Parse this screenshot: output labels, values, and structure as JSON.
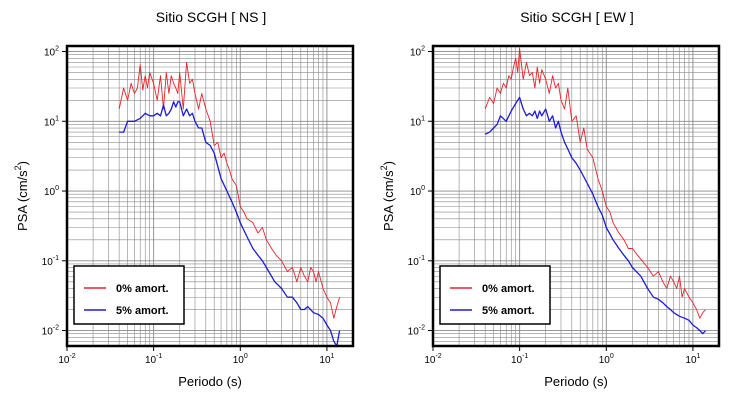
{
  "colors": {
    "undamped": "#e8232b",
    "damped": "#1c1cd6",
    "grid": "#8a8a8a",
    "frame": "#000000"
  },
  "chart_data": [
    {
      "type": "line",
      "title": "Sitio SCGH [ NS ]",
      "xlabel": "Periodo (s)",
      "ylabel": "PSA (cm/s²)",
      "x_scale": "log",
      "y_scale": "log",
      "xlim": [
        0.01,
        20
      ],
      "ylim": [
        0.006,
        120
      ],
      "x_ticks": [
        {
          "v": 0.01,
          "m": "10",
          "e": "-2"
        },
        {
          "v": 0.1,
          "m": "10",
          "e": "-1"
        },
        {
          "v": 1,
          "m": "10",
          "e": "0"
        },
        {
          "v": 10,
          "m": "10",
          "e": "1"
        }
      ],
      "y_ticks": [
        {
          "v": 0.01,
          "m": "10",
          "e": "-2"
        },
        {
          "v": 0.1,
          "m": "10",
          "e": "-1"
        },
        {
          "v": 1,
          "m": "10",
          "e": "0"
        },
        {
          "v": 10,
          "m": "10",
          "e": "1"
        },
        {
          "v": 100,
          "m": "10",
          "e": "2"
        }
      ],
      "grid": true,
      "legend_position": "bottom-left",
      "series": [
        {
          "name": "0% amort.",
          "color_key": "undamped",
          "x": [
            0.04,
            0.045,
            0.05,
            0.055,
            0.06,
            0.065,
            0.07,
            0.075,
            0.08,
            0.085,
            0.09,
            0.1,
            0.11,
            0.12,
            0.13,
            0.14,
            0.15,
            0.16,
            0.17,
            0.18,
            0.19,
            0.2,
            0.22,
            0.24,
            0.26,
            0.28,
            0.3,
            0.33,
            0.36,
            0.4,
            0.45,
            0.5,
            0.55,
            0.6,
            0.65,
            0.7,
            0.75,
            0.8,
            0.9,
            1.0,
            1.1,
            1.2,
            1.4,
            1.6,
            1.8,
            2.0,
            2.3,
            2.6,
            3.0,
            3.5,
            4.0,
            4.5,
            5,
            5.5,
            6,
            6.5,
            7,
            7.5,
            8,
            9,
            10,
            11,
            12,
            13,
            14
          ],
          "y": [
            15,
            30,
            20,
            35,
            25,
            30,
            65,
            28,
            45,
            30,
            50,
            35,
            20,
            45,
            15,
            50,
            25,
            45,
            35,
            30,
            25,
            50,
            15,
            70,
            35,
            40,
            25,
            15,
            25,
            15,
            10,
            4.5,
            5,
            3,
            3.5,
            2.5,
            2,
            1.5,
            1.2,
            0.6,
            0.5,
            0.4,
            0.35,
            0.25,
            0.3,
            0.2,
            0.15,
            0.12,
            0.1,
            0.07,
            0.08,
            0.05,
            0.08,
            0.06,
            0.05,
            0.08,
            0.07,
            0.05,
            0.07,
            0.04,
            0.03,
            0.025,
            0.015,
            0.022,
            0.03
          ]
        },
        {
          "name": "5% amort.",
          "color_key": "damped",
          "x": [
            0.04,
            0.045,
            0.05,
            0.06,
            0.07,
            0.08,
            0.09,
            0.1,
            0.11,
            0.12,
            0.13,
            0.14,
            0.15,
            0.16,
            0.17,
            0.18,
            0.19,
            0.2,
            0.22,
            0.24,
            0.26,
            0.28,
            0.3,
            0.33,
            0.36,
            0.4,
            0.45,
            0.5,
            0.6,
            0.7,
            0.8,
            0.9,
            1.0,
            1.2,
            1.4,
            1.6,
            1.8,
            2.0,
            2.5,
            3.0,
            3.5,
            4.0,
            4.5,
            5,
            5.5,
            6,
            7,
            8,
            9,
            10,
            11,
            12,
            13,
            14
          ],
          "y": [
            7,
            7,
            10,
            10,
            11,
            13,
            12,
            12,
            13,
            12,
            17,
            12,
            13,
            15,
            19,
            16,
            19,
            19,
            12,
            15,
            12,
            13,
            10,
            8,
            8,
            5,
            4.5,
            3.5,
            1.5,
            1.0,
            0.7,
            0.5,
            0.35,
            0.22,
            0.15,
            0.12,
            0.1,
            0.08,
            0.05,
            0.04,
            0.03,
            0.03,
            0.025,
            0.02,
            0.02,
            0.022,
            0.018,
            0.017,
            0.015,
            0.012,
            0.01,
            0.007,
            0.006,
            0.01
          ]
        }
      ]
    },
    {
      "type": "line",
      "title": "Sitio SCGH [ EW ]",
      "xlabel": "Periodo (s)",
      "ylabel": "PSA (cm/s²)",
      "x_scale": "log",
      "y_scale": "log",
      "xlim": [
        0.01,
        20
      ],
      "ylim": [
        0.006,
        120
      ],
      "x_ticks": [
        {
          "v": 0.01,
          "m": "10",
          "e": "-2"
        },
        {
          "v": 0.1,
          "m": "10",
          "e": "-1"
        },
        {
          "v": 1,
          "m": "10",
          "e": "0"
        },
        {
          "v": 10,
          "m": "10",
          "e": "1"
        }
      ],
      "y_ticks": [
        {
          "v": 0.01,
          "m": "10",
          "e": "-2"
        },
        {
          "v": 0.1,
          "m": "10",
          "e": "-1"
        },
        {
          "v": 1,
          "m": "10",
          "e": "0"
        },
        {
          "v": 10,
          "m": "10",
          "e": "1"
        },
        {
          "v": 100,
          "m": "10",
          "e": "2"
        }
      ],
      "grid": true,
      "legend_position": "bottom-left",
      "series": [
        {
          "name": "0% amort.",
          "color_key": "undamped",
          "x": [
            0.04,
            0.045,
            0.05,
            0.055,
            0.06,
            0.065,
            0.07,
            0.075,
            0.08,
            0.085,
            0.09,
            0.095,
            0.1,
            0.11,
            0.12,
            0.13,
            0.14,
            0.15,
            0.16,
            0.17,
            0.18,
            0.2,
            0.22,
            0.24,
            0.26,
            0.28,
            0.3,
            0.33,
            0.36,
            0.4,
            0.45,
            0.5,
            0.55,
            0.6,
            0.7,
            0.8,
            0.9,
            1.0,
            1.1,
            1.2,
            1.4,
            1.6,
            1.8,
            2.0,
            2.3,
            2.6,
            3.0,
            3.5,
            4.0,
            4.5,
            5,
            5.5,
            6,
            6.5,
            7,
            7.5,
            8,
            9,
            10,
            11,
            12,
            13,
            14
          ],
          "y": [
            15,
            22,
            18,
            30,
            25,
            35,
            30,
            45,
            40,
            60,
            80,
            50,
            110,
            40,
            70,
            45,
            50,
            30,
            60,
            35,
            55,
            40,
            25,
            45,
            30,
            35,
            20,
            15,
            30,
            10,
            12,
            5,
            8,
            4,
            3,
            1.5,
            1.0,
            0.6,
            0.5,
            0.35,
            0.25,
            0.2,
            0.15,
            0.15,
            0.12,
            0.1,
            0.08,
            0.06,
            0.07,
            0.05,
            0.04,
            0.06,
            0.05,
            0.04,
            0.06,
            0.03,
            0.04,
            0.03,
            0.025,
            0.02,
            0.015,
            0.018,
            0.02
          ]
        },
        {
          "name": "5% amort.",
          "color_key": "damped",
          "x": [
            0.04,
            0.045,
            0.05,
            0.055,
            0.06,
            0.07,
            0.08,
            0.09,
            0.1,
            0.11,
            0.12,
            0.13,
            0.14,
            0.15,
            0.16,
            0.17,
            0.18,
            0.2,
            0.22,
            0.24,
            0.26,
            0.28,
            0.3,
            0.33,
            0.36,
            0.4,
            0.45,
            0.5,
            0.6,
            0.7,
            0.8,
            0.9,
            1.0,
            1.2,
            1.4,
            1.6,
            1.8,
            2.0,
            2.5,
            3.0,
            3.5,
            4.0,
            4.5,
            5,
            5.5,
            6,
            7,
            8,
            9,
            10,
            11,
            12,
            13,
            14
          ],
          "y": [
            6.5,
            7,
            8,
            9,
            12,
            10,
            14,
            18,
            22,
            15,
            12,
            13,
            12,
            14,
            11,
            14,
            12,
            15,
            10,
            12,
            8,
            10,
            7,
            5,
            4,
            3,
            2.5,
            2,
            1.3,
            0.9,
            0.6,
            0.45,
            0.3,
            0.2,
            0.15,
            0.12,
            0.1,
            0.08,
            0.06,
            0.04,
            0.03,
            0.028,
            0.025,
            0.022,
            0.02,
            0.018,
            0.016,
            0.015,
            0.014,
            0.012,
            0.011,
            0.01,
            0.009,
            0.01
          ]
        }
      ]
    }
  ]
}
